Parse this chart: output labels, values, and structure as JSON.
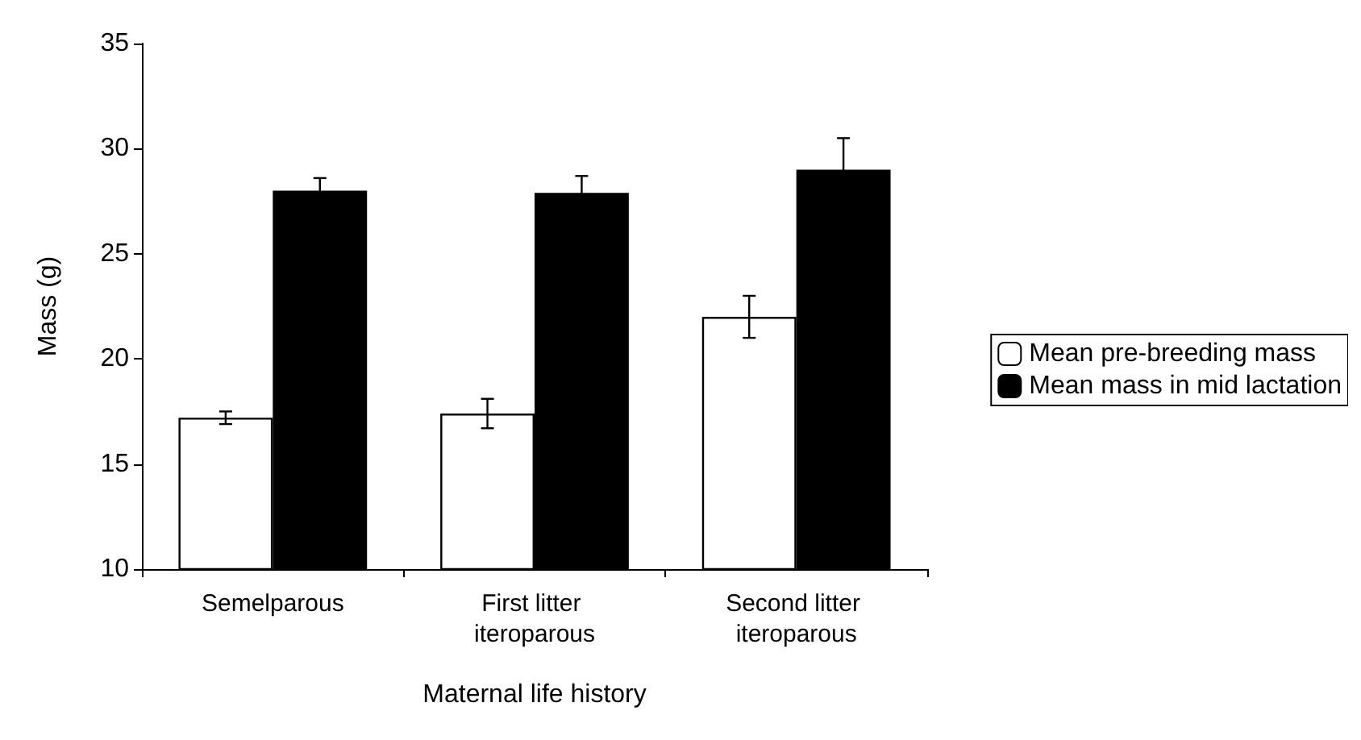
{
  "chart_data": {
    "type": "bar",
    "xlabel": "Maternal life history",
    "ylabel": "Mass (g)",
    "categories": [
      "Semelparous",
      "First litter iteroparous",
      "Second litter iteroparous"
    ],
    "series": [
      {
        "name": "Mean pre-breeding mass",
        "color": "#ffffff",
        "values": [
          17.2,
          17.4,
          22.0
        ],
        "errors": [
          0.3,
          0.7,
          1.0
        ]
      },
      {
        "name": "Mean mass in mid lactation",
        "color": "#000000",
        "values": [
          28.0,
          27.9,
          29.0
        ],
        "errors": [
          0.6,
          0.8,
          1.5
        ]
      }
    ],
    "ylim": [
      10,
      35
    ],
    "yticks": [
      10,
      15,
      20,
      25,
      30,
      35
    ],
    "grid": false,
    "legend": "right"
  }
}
